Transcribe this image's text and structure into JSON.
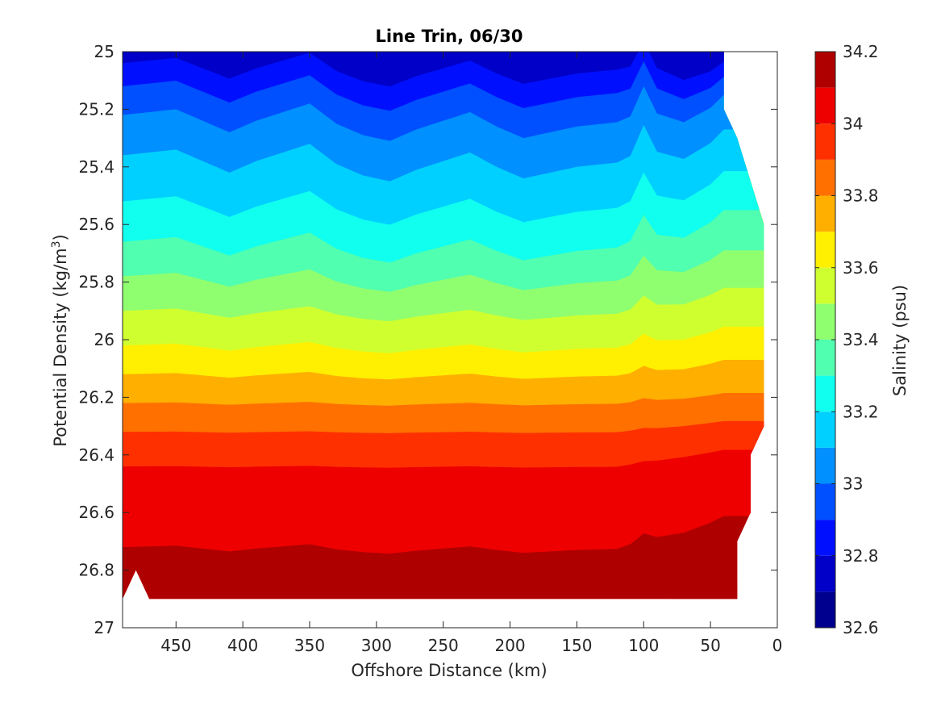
{
  "chart_data": {
    "type": "contour",
    "title": "Line Trin, 06/30",
    "xlabel": "Offshore Distance (km)",
    "ylabel": "Potential Density (kg/m",
    "ylabel_sup": "3",
    "ylabel_suffix": ")",
    "colorbar_label": "Salinity (psu)",
    "x_reversed": true,
    "y_reversed": true,
    "xlim": [
      490,
      0
    ],
    "ylim": [
      25,
      27
    ],
    "xticks": [
      450,
      400,
      350,
      300,
      250,
      200,
      150,
      100,
      50,
      0
    ],
    "xtick_labels": [
      "450",
      "400",
      "350",
      "300",
      "250",
      "200",
      "150",
      "100",
      "50",
      "0"
    ],
    "yticks": [
      25,
      25.2,
      25.4,
      25.6,
      25.8,
      26,
      26.2,
      26.4,
      26.6,
      26.8,
      27
    ],
    "ytick_labels": [
      "25",
      "25.2",
      "25.4",
      "25.6",
      "25.8",
      "26",
      "26.2",
      "26.4",
      "26.6",
      "26.8",
      "27"
    ],
    "colorbar_range": [
      32.6,
      34.2
    ],
    "colorbar_ticks": [
      32.6,
      32.8,
      33,
      33.2,
      33.4,
      33.6,
      33.8,
      34,
      34.2
    ],
    "colorbar_tick_labels": [
      "32.6",
      "32.8",
      "33",
      "33.2",
      "33.4",
      "33.6",
      "33.8",
      "34",
      "34.2"
    ],
    "levels": [
      32.6,
      32.7,
      32.8,
      32.9,
      33.0,
      33.1,
      33.2,
      33.3,
      33.4,
      33.5,
      33.6,
      33.7,
      33.8,
      33.9,
      34.0,
      34.1,
      34.2
    ],
    "level_colors": [
      "#00008f",
      "#0000c8",
      "#0010ff",
      "#0050ff",
      "#0090ff",
      "#00d0ff",
      "#10ffef",
      "#50ffaf",
      "#90ff6f",
      "#d0ff2f",
      "#ffef00",
      "#ffaf00",
      "#ff7000",
      "#ff3000",
      "#ef0000",
      "#af0000"
    ],
    "x_stations": [
      490,
      480,
      470,
      450,
      430,
      410,
      390,
      370,
      350,
      330,
      310,
      290,
      270,
      250,
      230,
      210,
      190,
      170,
      150,
      130,
      110,
      100,
      90,
      70,
      50,
      40,
      30,
      20,
      10
    ],
    "iso_035": [
      25.15,
      25.08,
      25.1,
      25.0,
      25.0,
      25.0,
      25.0,
      25.0,
      25.0,
      25.0,
      25.0,
      25.0,
      25.0,
      25.0,
      25.0,
      25.0,
      25.0,
      25.0,
      25.0,
      25.0,
      25.0,
      25.0,
      25.0,
      25.0,
      25.0
    ],
    "isopycnal_offsets": {
      "x": [
        490,
        470,
        450,
        430,
        410,
        390,
        370,
        350,
        330,
        310,
        290,
        270,
        250,
        230,
        210,
        190,
        170,
        150,
        130,
        110,
        100,
        90,
        70,
        50,
        40
      ],
      "upper": [
        0.0,
        -0.01,
        -0.02,
        0.02,
        0.06,
        0.02,
        -0.01,
        -0.04,
        0.03,
        0.07,
        0.09,
        0.05,
        0.02,
        -0.01,
        0.04,
        0.08,
        0.06,
        0.04,
        0.03,
        0.02,
        -0.07,
        0.04,
        0.1,
        0.08,
        0.05
      ]
    },
    "bottom_boundary": {
      "x": [
        490,
        480,
        470,
        30
      ],
      "y": [
        26.9,
        26.8,
        26.9,
        26.9
      ]
    },
    "east_boundary": {
      "x": [
        40,
        40,
        30,
        20,
        10,
        10,
        20,
        20,
        30,
        30
      ],
      "y": [
        25.0,
        25.2,
        25.3,
        25.45,
        25.6,
        26.3,
        26.4,
        26.6,
        26.7,
        26.9
      ]
    }
  }
}
